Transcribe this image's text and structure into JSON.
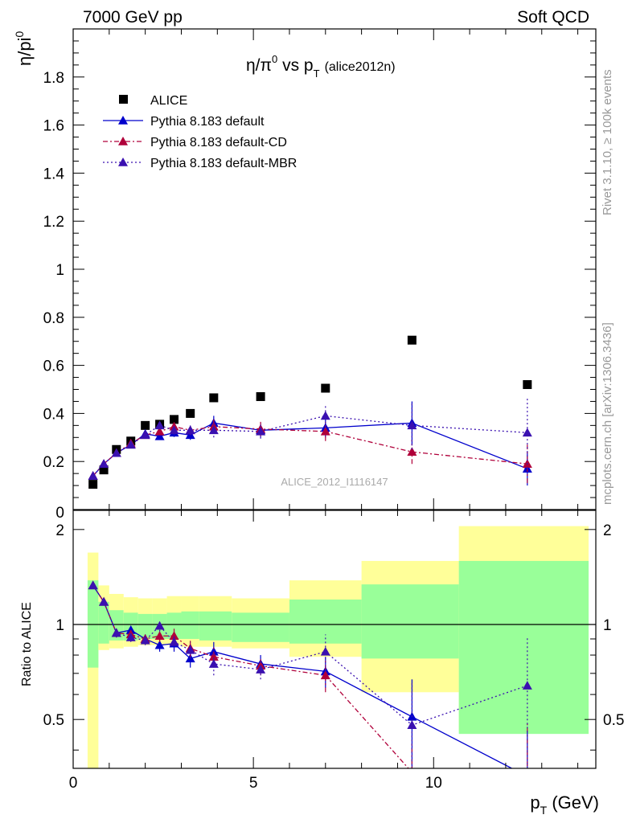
{
  "header": {
    "left": "7000 GeV pp",
    "right": "Soft QCD"
  },
  "side_text": {
    "rivet": "Rivet 3.1.10, ≥ 100k events",
    "mcplots": "mcplots.cern.ch [arXiv:1306.3436]"
  },
  "chart_data": [
    {
      "type": "scatter",
      "title_main": "η/π",
      "title_sup": "0",
      "title_vs": " vs p",
      "title_sub": "T",
      "title_tag": "(alice2012n)",
      "ylabel_main": "η/pi",
      "ylabel_sup": "0",
      "watermark": "ALICE_2012_I1116147",
      "xlim": [
        0,
        14.5
      ],
      "ylim": [
        0,
        2.0
      ],
      "yticks": [
        0.2,
        0.4,
        0.6,
        0.8,
        1,
        1.2,
        1.4,
        1.6,
        1.8
      ],
      "ytick_labels": [
        "0.2",
        "0.4",
        "0.6",
        "0.8",
        "1",
        "1.2",
        "1.4",
        "1.6",
        "1.8"
      ],
      "ytick_zero_label": "0",
      "legend_position": "top-left",
      "series": [
        {
          "name": "ALICE",
          "marker": "square",
          "color": "#000000",
          "x": [
            0.55,
            0.85,
            1.2,
            1.6,
            2.0,
            2.4,
            2.8,
            3.25,
            3.9,
            5.2,
            7.0,
            9.4,
            12.6
          ],
          "y": [
            0.105,
            0.165,
            0.25,
            0.285,
            0.35,
            0.355,
            0.375,
            0.4,
            0.465,
            0.47,
            0.505,
            0.705,
            0.52
          ]
        },
        {
          "name": "Pythia 8.183 default",
          "marker": "triangle",
          "line": "solid",
          "color": "#0000cc",
          "x": [
            0.55,
            0.85,
            1.2,
            1.6,
            2.0,
            2.4,
            2.8,
            3.25,
            3.9,
            5.2,
            7.0,
            9.4,
            12.6
          ],
          "y": [
            0.14,
            0.19,
            0.235,
            0.27,
            0.315,
            0.305,
            0.32,
            0.31,
            0.36,
            0.33,
            0.34,
            0.36,
            0.17
          ],
          "err": [
            0.01,
            0.01,
            0.01,
            0.012,
            0.012,
            0.015,
            0.018,
            0.02,
            0.03,
            0.03,
            0.04,
            0.09,
            0.07
          ]
        },
        {
          "name": "Pythia 8.183 default-CD",
          "marker": "triangle",
          "line": "dashdot",
          "color": "#b0003a",
          "x": [
            0.55,
            0.85,
            1.2,
            1.6,
            2.0,
            2.4,
            2.8,
            3.25,
            3.9,
            5.2,
            7.0,
            9.4,
            12.6
          ],
          "y": [
            0.14,
            0.19,
            0.235,
            0.275,
            0.31,
            0.325,
            0.345,
            0.33,
            0.345,
            0.335,
            0.325,
            0.24,
            0.19
          ],
          "err": [
            0.01,
            0.01,
            0.01,
            0.012,
            0.012,
            0.015,
            0.018,
            0.02,
            0.03,
            0.03,
            0.04,
            0.05,
            0.08
          ]
        },
        {
          "name": "Pythia 8.183 default-MBR",
          "marker": "triangle",
          "line": "dotted",
          "color": "#3a10b0",
          "x": [
            0.55,
            0.85,
            1.2,
            1.6,
            2.0,
            2.4,
            2.8,
            3.25,
            3.9,
            5.2,
            7.0,
            9.4,
            12.6
          ],
          "y": [
            0.14,
            0.19,
            0.235,
            0.27,
            0.31,
            0.35,
            0.33,
            0.33,
            0.33,
            0.325,
            0.39,
            0.35,
            0.32
          ],
          "err": [
            0.01,
            0.01,
            0.01,
            0.012,
            0.012,
            0.015,
            0.018,
            0.02,
            0.03,
            0.03,
            0.05,
            0.1,
            0.15
          ]
        }
      ]
    },
    {
      "type": "scatter",
      "ylabel": "Ratio to ALICE",
      "xlabel_main": "p",
      "xlabel_sub": "T",
      "xlabel_unit": " (GeV)",
      "xlim": [
        0,
        14.5
      ],
      "ylim": [
        0.35,
        2.3
      ],
      "xticks": [
        0,
        5,
        10
      ],
      "xtick_labels": [
        "0",
        "5",
        "10"
      ],
      "yticks": [
        0.5,
        1,
        2
      ],
      "ytick_labels": [
        "0.5",
        "1",
        "2"
      ],
      "reference_line": 1,
      "bands": {
        "bin_edges": [
          0.4,
          0.7,
          1.0,
          1.4,
          1.8,
          2.2,
          2.6,
          3.0,
          3.5,
          4.4,
          6.0,
          8.0,
          10.7,
          14.3
        ],
        "yellow_lo": [
          0.35,
          0.83,
          0.84,
          0.85,
          0.86,
          0.86,
          0.86,
          0.85,
          0.85,
          0.84,
          0.79,
          0.61,
          0.46
        ],
        "yellow_hi": [
          1.69,
          1.33,
          1.25,
          1.22,
          1.21,
          1.21,
          1.23,
          1.23,
          1.23,
          1.21,
          1.38,
          1.59,
          2.05
        ],
        "green_lo": [
          0.73,
          0.87,
          0.89,
          0.89,
          0.9,
          0.9,
          0.9,
          0.9,
          0.89,
          0.88,
          0.87,
          0.78,
          0.45
        ],
        "green_hi": [
          1.38,
          1.18,
          1.11,
          1.09,
          1.08,
          1.08,
          1.09,
          1.1,
          1.1,
          1.09,
          1.2,
          1.34,
          1.59
        ],
        "yellow_color": "#ffff99",
        "green_color": "#99ff99"
      },
      "series": [
        {
          "name": "Pythia 8.183 default",
          "color": "#0000cc",
          "line": "solid",
          "x": [
            0.55,
            0.85,
            1.2,
            1.6,
            2.0,
            2.4,
            2.8,
            3.25,
            3.9,
            5.2,
            7.0,
            9.4,
            12.6
          ],
          "y": [
            1.33,
            1.18,
            0.94,
            0.96,
            0.9,
            0.86,
            0.87,
            0.78,
            0.82,
            0.75,
            0.71,
            0.51,
            0.33
          ],
          "err": [
            0.02,
            0.02,
            0.03,
            0.03,
            0.03,
            0.04,
            0.05,
            0.05,
            0.06,
            0.05,
            0.08,
            0.16,
            0.13
          ]
        },
        {
          "name": "Pythia 8.183 default-CD",
          "color": "#b0003a",
          "line": "dashdot",
          "x": [
            0.55,
            0.85,
            1.2,
            1.6,
            2.0,
            2.4,
            2.8,
            3.25,
            3.9,
            5.2,
            7.0,
            9.4,
            12.6
          ],
          "y": [
            1.33,
            1.18,
            0.94,
            0.93,
            0.9,
            0.92,
            0.92,
            0.84,
            0.79,
            0.74,
            0.69,
            0.34,
            0.34
          ],
          "err": [
            0.02,
            0.02,
            0.03,
            0.03,
            0.03,
            0.04,
            0.05,
            0.05,
            0.06,
            0.05,
            0.08,
            0.08,
            0.15
          ]
        },
        {
          "name": "Pythia 8.183 default-MBR",
          "color": "#3a10b0",
          "line": "dotted",
          "x": [
            0.55,
            0.85,
            1.2,
            1.6,
            2.0,
            2.4,
            2.8,
            3.25,
            3.9,
            5.2,
            7.0,
            9.4,
            12.6
          ],
          "y": [
            1.33,
            1.18,
            0.94,
            0.91,
            0.89,
            0.99,
            0.88,
            0.83,
            0.75,
            0.72,
            0.82,
            0.48,
            0.64
          ],
          "err": [
            0.02,
            0.02,
            0.03,
            0.03,
            0.03,
            0.04,
            0.05,
            0.05,
            0.06,
            0.05,
            0.11,
            0.18,
            0.28
          ]
        }
      ]
    }
  ]
}
